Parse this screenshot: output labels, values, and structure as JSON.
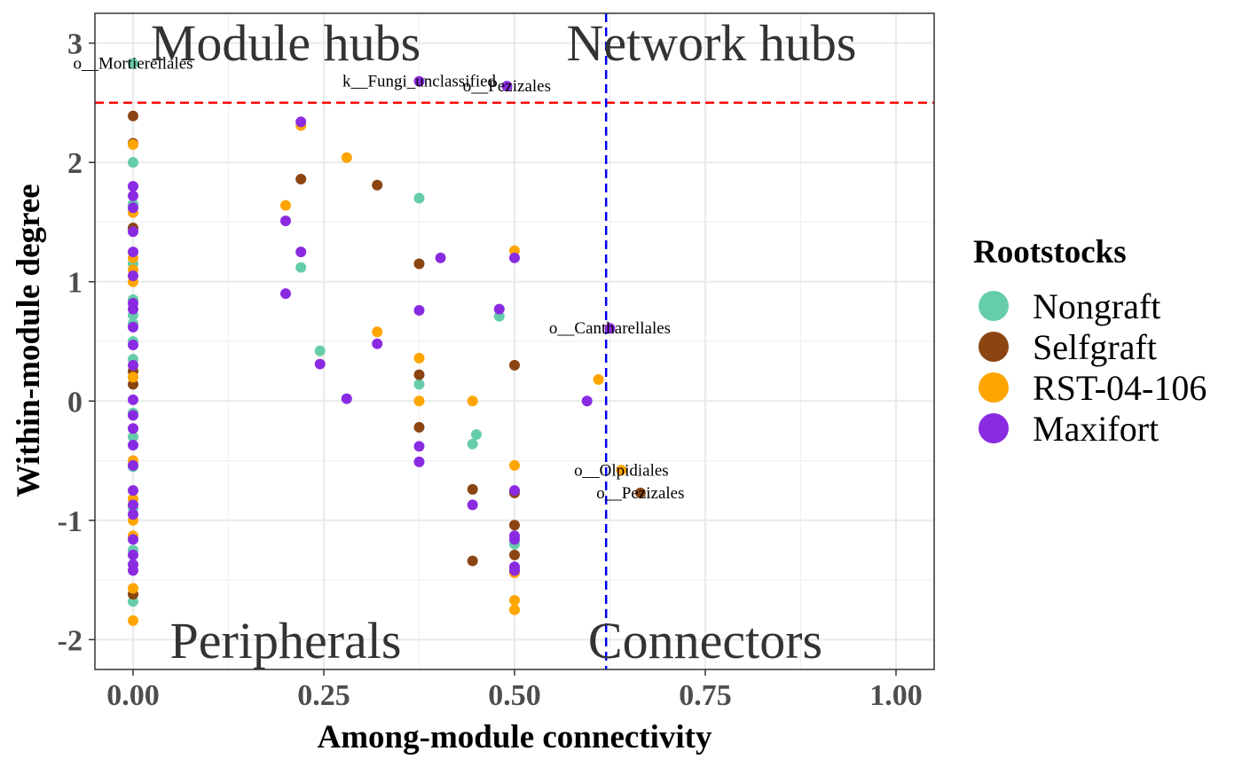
{
  "chart_data": {
    "type": "scatter",
    "xlabel": "Among-module connectivity",
    "ylabel": "Within-module degree",
    "xlim": [
      -0.05,
      1.05
    ],
    "ylim": [
      -2.25,
      3.25
    ],
    "x_ticks": [
      "0.00",
      "0.25",
      "0.50",
      "0.75",
      "1.00"
    ],
    "y_ticks": [
      "-2",
      "-1",
      "0",
      "1",
      "2",
      "3"
    ],
    "grid": true,
    "legend": {
      "title": "Rootstocks",
      "position": "right"
    },
    "threshold_lines": {
      "horizontal_y": 2.5,
      "vertical_x": 0.62
    },
    "quadrant_labels": {
      "top_left": "Module hubs",
      "top_right": "Network hubs",
      "bottom_left": "Peripherals",
      "bottom_right": "Connectors"
    },
    "series": [
      {
        "name": "Nongraft",
        "color": "#66CDAA",
        "points": [
          [
            0,
            2.83
          ],
          [
            0,
            2.0
          ],
          [
            0,
            1.65
          ],
          [
            0,
            1.45
          ],
          [
            0,
            1.15
          ],
          [
            0,
            0.85
          ],
          [
            0,
            0.72
          ],
          [
            0,
            0.65
          ],
          [
            0,
            0.5
          ],
          [
            0,
            0.35
          ],
          [
            0,
            0.2
          ],
          [
            0,
            -0.1
          ],
          [
            0,
            -0.3
          ],
          [
            0,
            -0.55
          ],
          [
            0,
            -0.9
          ],
          [
            0,
            -1.25
          ],
          [
            0,
            -1.68
          ],
          [
            0.22,
            1.12
          ],
          [
            0.245,
            0.42
          ],
          [
            0.375,
            1.7
          ],
          [
            0.375,
            0.14
          ],
          [
            0.45,
            -0.28
          ],
          [
            0.445,
            -0.36
          ],
          [
            0.48,
            0.71
          ],
          [
            0.5,
            -1.2
          ]
        ]
      },
      {
        "name": "Selfgraft",
        "color": "#8B4513",
        "points": [
          [
            0,
            2.39
          ],
          [
            0,
            2.16
          ],
          [
            0,
            1.45
          ],
          [
            0,
            0.25
          ],
          [
            0,
            0.14
          ],
          [
            0,
            -1.62
          ],
          [
            0.22,
            1.86
          ],
          [
            0.32,
            1.81
          ],
          [
            0.375,
            1.15
          ],
          [
            0.375,
            0.22
          ],
          [
            0.375,
            -0.22
          ],
          [
            0.445,
            -0.74
          ],
          [
            0.445,
            -1.34
          ],
          [
            0.5,
            0.3
          ],
          [
            0.5,
            -0.77
          ],
          [
            0.5,
            -1.04
          ],
          [
            0.5,
            -1.29
          ],
          [
            0.5,
            -1.42
          ],
          [
            0.665,
            -0.77
          ]
        ]
      },
      {
        "name": "RST-04-106",
        "color": "#FFA500",
        "points": [
          [
            0,
            2.15
          ],
          [
            0,
            1.58
          ],
          [
            0,
            1.2
          ],
          [
            0,
            1.1
          ],
          [
            0,
            1.0
          ],
          [
            0,
            0.2
          ],
          [
            0,
            -0.5
          ],
          [
            0,
            -0.82
          ],
          [
            0,
            -1.0
          ],
          [
            0,
            -1.13
          ],
          [
            0,
            -1.57
          ],
          [
            0,
            -1.84
          ],
          [
            0.2,
            1.64
          ],
          [
            0.22,
            2.31
          ],
          [
            0.28,
            2.04
          ],
          [
            0.32,
            0.58
          ],
          [
            0.375,
            0.36
          ],
          [
            0.375,
            0.0
          ],
          [
            0.445,
            0.0
          ],
          [
            0.5,
            1.26
          ],
          [
            0.5,
            -0.54
          ],
          [
            0.5,
            -1.44
          ],
          [
            0.5,
            -1.67
          ],
          [
            0.5,
            -1.75
          ],
          [
            0.61,
            0.18
          ],
          [
            0.64,
            -0.58
          ]
        ]
      },
      {
        "name": "Maxifort",
        "color": "#8A2BE2",
        "points": [
          [
            0,
            1.8
          ],
          [
            0,
            1.72
          ],
          [
            0,
            1.62
          ],
          [
            0,
            1.42
          ],
          [
            0,
            1.25
          ],
          [
            0,
            1.05
          ],
          [
            0,
            0.82
          ],
          [
            0,
            0.77
          ],
          [
            0,
            0.62
          ],
          [
            0,
            0.47
          ],
          [
            0,
            0.3
          ],
          [
            0,
            0.01
          ],
          [
            0,
            -0.12
          ],
          [
            0,
            -0.23
          ],
          [
            0,
            -0.37
          ],
          [
            0,
            -0.54
          ],
          [
            0,
            -0.75
          ],
          [
            0,
            -0.87
          ],
          [
            0,
            -0.95
          ],
          [
            0,
            -1.16
          ],
          [
            0,
            -1.29
          ],
          [
            0,
            -1.37
          ],
          [
            0,
            -1.42
          ],
          [
            0.2,
            1.51
          ],
          [
            0.2,
            0.9
          ],
          [
            0.22,
            2.34
          ],
          [
            0.22,
            1.25
          ],
          [
            0.245,
            0.31
          ],
          [
            0.28,
            0.02
          ],
          [
            0.32,
            0.48
          ],
          [
            0.375,
            2.68
          ],
          [
            0.375,
            0.76
          ],
          [
            0.375,
            -0.38
          ],
          [
            0.375,
            -0.51
          ],
          [
            0.403,
            1.2
          ],
          [
            0.445,
            -0.87
          ],
          [
            0.48,
            0.77
          ],
          [
            0.49,
            2.64
          ],
          [
            0.5,
            1.2
          ],
          [
            0.5,
            -0.75
          ],
          [
            0.5,
            -1.13
          ],
          [
            0.5,
            -1.16
          ],
          [
            0.5,
            -1.39
          ],
          [
            0.5,
            -1.42
          ],
          [
            0.595,
            0.0
          ],
          [
            0.625,
            0.61
          ]
        ]
      }
    ],
    "point_labels": [
      {
        "text": "o__Mortierellales",
        "x": 0.0,
        "y": 2.83
      },
      {
        "text": "k__Fungi_unclassified",
        "x": 0.375,
        "y": 2.68
      },
      {
        "text": "o__Pezizales",
        "x": 0.49,
        "y": 2.64
      },
      {
        "text": "o__Cantharellales",
        "x": 0.625,
        "y": 0.61
      },
      {
        "text": "o__Olpidiales",
        "x": 0.64,
        "y": -0.58
      },
      {
        "text": "o__Pezizales",
        "x": 0.665,
        "y": -0.77
      }
    ]
  }
}
